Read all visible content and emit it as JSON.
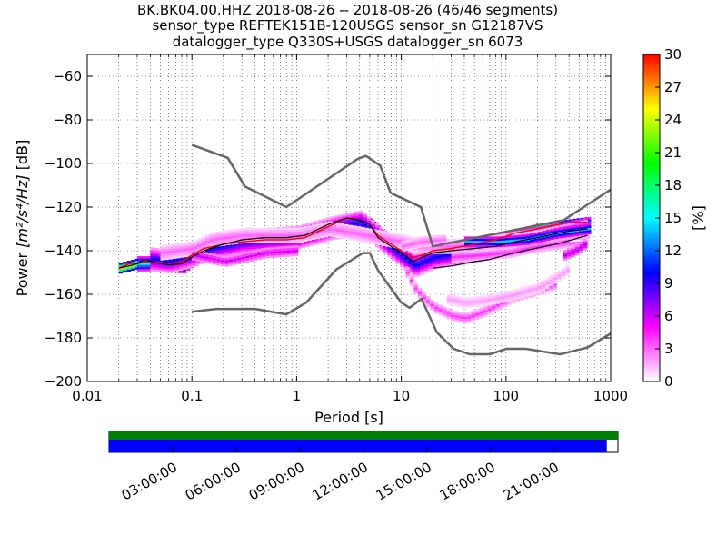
{
  "title_lines": [
    "BK.BK04.00.HHZ   2018-08-26 -- 2018-08-26  (46/46 segments)",
    "sensor_type REFTEK151B-120USGS sensor_sn G12187VS",
    "datalogger_type Q330S+USGS datalogger_sn 6073"
  ],
  "chart_data": {
    "type": "heatmap",
    "xlabel": "Period [s]",
    "ylabel_prefix": "Power ",
    "ylabel_math": "[m²/s⁴/Hz]",
    "ylabel_suffix": " [dB]",
    "x_scale": "log",
    "xlim": [
      0.01,
      1000
    ],
    "ylim": [
      -200,
      -50
    ],
    "x_ticks": [
      0.01,
      0.1,
      1,
      10,
      100,
      1000
    ],
    "x_tick_labels": [
      "0.01",
      "0.1",
      "1",
      "10",
      "100",
      "1000"
    ],
    "y_ticks": [
      -200,
      -180,
      -160,
      -140,
      -120,
      -100,
      -80,
      -60
    ],
    "y_tick_labels": [
      "−200",
      "−180",
      "−160",
      "−140",
      "−120",
      "−100",
      "−80",
      "−60"
    ],
    "colorbar": {
      "label": "[%]",
      "range": [
        0,
        30
      ],
      "ticks": [
        0,
        3,
        6,
        9,
        12,
        15,
        18,
        21,
        24,
        27,
        30
      ],
      "tick_labels": [
        "0",
        "3",
        "6",
        "9",
        "12",
        "15",
        "18",
        "21",
        "24",
        "27",
        "30"
      ],
      "colors": [
        "#ffffff",
        "#ff00ff",
        "#0000ff",
        "#00ffff",
        "#00ff00",
        "#ffff00",
        "#ff0000"
      ]
    },
    "nhnm": {
      "name": "NHNM",
      "color": "#666666",
      "points": [
        [
          0.1,
          -91.5
        ],
        [
          0.22,
          -97.4
        ],
        [
          0.32,
          -110.5
        ],
        [
          0.8,
          -120
        ],
        [
          3.8,
          -98
        ],
        [
          4.6,
          -96.5
        ],
        [
          6.3,
          -101
        ],
        [
          7.9,
          -113.5
        ],
        [
          15.4,
          -120
        ],
        [
          20,
          -138
        ],
        [
          354.8,
          -126
        ],
        [
          1000,
          -112
        ]
      ]
    },
    "nlnm": {
      "name": "NLNM",
      "color": "#666666",
      "points": [
        [
          0.1,
          -168
        ],
        [
          0.17,
          -166.7
        ],
        [
          0.4,
          -166.7
        ],
        [
          0.8,
          -169.2
        ],
        [
          1.24,
          -163.7
        ],
        [
          2.4,
          -148.6
        ],
        [
          4.3,
          -141.1
        ],
        [
          5,
          -141.1
        ],
        [
          6,
          -149
        ],
        [
          10,
          -163.8
        ],
        [
          12,
          -166.2
        ],
        [
          15.6,
          -162.1
        ],
        [
          21.9,
          -177.5
        ],
        [
          31.6,
          -185
        ],
        [
          45,
          -187.5
        ],
        [
          70,
          -187.5
        ],
        [
          101,
          -185
        ],
        [
          154,
          -185
        ],
        [
          328,
          -187.5
        ],
        [
          600,
          -184.4
        ],
        [
          1000,
          -178
        ]
      ]
    },
    "mean_line": {
      "color": "#000000",
      "points": [
        [
          0.02,
          -148
        ],
        [
          0.025,
          -147
        ],
        [
          0.03,
          -146
        ],
        [
          0.035,
          -144
        ],
        [
          0.045,
          -145.5
        ],
        [
          0.06,
          -146.5
        ],
        [
          0.08,
          -146
        ],
        [
          0.1,
          -143
        ],
        [
          0.13,
          -140
        ],
        [
          0.2,
          -137
        ],
        [
          0.3,
          -135
        ],
        [
          0.5,
          -134
        ],
        [
          0.8,
          -134
        ],
        [
          1.2,
          -133
        ],
        [
          2,
          -128
        ],
        [
          3,
          -125
        ],
        [
          4,
          -126
        ],
        [
          5,
          -128
        ],
        [
          6,
          -134
        ],
        [
          8,
          -138
        ],
        [
          10,
          -141
        ],
        [
          13,
          -145
        ],
        [
          16,
          -143
        ],
        [
          20,
          -141
        ],
        [
          30,
          -140
        ],
        [
          50,
          -139
        ],
        [
          80,
          -138
        ],
        [
          120,
          -136
        ],
        [
          200,
          -134
        ],
        [
          400,
          -131
        ],
        [
          600,
          -130
        ]
      ]
    },
    "mode_line": {
      "color": "#ff0000",
      "points": [
        [
          0.02,
          -148
        ],
        [
          0.025,
          -146
        ],
        [
          0.03,
          -146
        ],
        [
          0.035,
          -145
        ],
        [
          0.045,
          -145
        ],
        [
          0.06,
          -146
        ],
        [
          0.08,
          -145
        ],
        [
          0.1,
          -142
        ],
        [
          0.13,
          -139
        ],
        [
          0.2,
          -137
        ],
        [
          0.3,
          -136
        ],
        [
          0.5,
          -135
        ],
        [
          0.8,
          -135
        ],
        [
          1.2,
          -134
        ],
        [
          2,
          -129
        ],
        [
          3,
          -125
        ],
        [
          4,
          -126
        ],
        [
          5,
          -128
        ],
        [
          6,
          -133
        ],
        [
          8,
          -137
        ],
        [
          10,
          -140
        ],
        [
          13,
          -143
        ],
        [
          16,
          -142
        ],
        [
          20,
          -140
        ],
        [
          30,
          -139
        ],
        [
          50,
          -137
        ],
        [
          80,
          -135
        ],
        [
          120,
          -132
        ],
        [
          200,
          -130
        ],
        [
          400,
          -127
        ],
        [
          600,
          -127
        ]
      ]
    },
    "low_line": {
      "color": "#000000",
      "points": [
        [
          20,
          -148
        ],
        [
          30,
          -147
        ],
        [
          50,
          -145
        ],
        [
          70,
          -144
        ],
        [
          100,
          -142
        ],
        [
          150,
          -140
        ],
        [
          300,
          -137
        ],
        [
          600,
          -133
        ]
      ]
    },
    "pdf_bands": [
      {
        "points": [
          [
            0.02,
            -148
          ],
          [
            0.03,
            -146
          ],
          [
            0.05,
            -145
          ],
          [
            0.08,
            -146
          ],
          [
            0.1,
            -143
          ],
          [
            0.2,
            -137
          ],
          [
            0.5,
            -134
          ],
          [
            1,
            -134
          ],
          [
            2,
            -129
          ],
          [
            3,
            -125
          ],
          [
            4,
            -126
          ],
          [
            5,
            -128
          ],
          [
            7,
            -135
          ],
          [
            10,
            -141
          ],
          [
            13,
            -145
          ],
          [
            20,
            -141
          ],
          [
            50,
            -138
          ],
          [
            100,
            -134
          ],
          [
            200,
            -130
          ],
          [
            600,
            -127
          ]
        ],
        "halfwidth": 2,
        "pct": 26
      },
      {
        "points": [
          [
            0.03,
            -146
          ],
          [
            0.05,
            -146
          ],
          [
            0.08,
            -147
          ],
          [
            0.1,
            -144
          ],
          [
            0.2,
            -138
          ],
          [
            0.5,
            -135
          ],
          [
            1,
            -135
          ],
          [
            2,
            -130
          ],
          [
            3,
            -126
          ],
          [
            5,
            -129
          ],
          [
            7,
            -137
          ],
          [
            10,
            -142
          ],
          [
            13,
            -146
          ],
          [
            20,
            -142
          ],
          [
            50,
            -139
          ],
          [
            100,
            -135
          ],
          [
            300,
            -131
          ],
          [
            600,
            -128
          ]
        ],
        "halfwidth": 3,
        "pct": 16
      },
      {
        "points": [
          [
            0.04,
            -144
          ],
          [
            0.06,
            -145
          ],
          [
            0.1,
            -142
          ],
          [
            0.15,
            -139
          ],
          [
            0.3,
            -136
          ],
          [
            1,
            -134
          ],
          [
            2,
            -130
          ],
          [
            4,
            -127
          ],
          [
            8,
            -139
          ],
          [
            13,
            -147
          ],
          [
            20,
            -143
          ],
          [
            50,
            -140
          ],
          [
            100,
            -137
          ],
          [
            300,
            -134
          ],
          [
            600,
            -131
          ]
        ],
        "halfwidth": 5,
        "pct": 10
      },
      {
        "points": [
          [
            0.05,
            -141
          ],
          [
            0.1,
            -139
          ],
          [
            0.15,
            -135
          ],
          [
            0.3,
            -133
          ],
          [
            1,
            -133
          ],
          [
            2,
            -130
          ],
          [
            10,
            -136
          ],
          [
            15,
            -138
          ],
          [
            30,
            -138
          ],
          [
            100,
            -136
          ],
          [
            300,
            -133
          ],
          [
            600,
            -132
          ]
        ],
        "halfwidth": 3,
        "pct": 3
      },
      {
        "points": [
          [
            0.1,
            -142
          ],
          [
            0.2,
            -145
          ],
          [
            0.5,
            -141
          ],
          [
            1,
            -140
          ]
        ],
        "halfwidth": 2,
        "pct": 6
      },
      {
        "points": [
          [
            11,
            -150
          ],
          [
            13,
            -157
          ],
          [
            16,
            -162
          ],
          [
            20,
            -166
          ],
          [
            30,
            -170
          ],
          [
            40,
            -171
          ],
          [
            60,
            -168
          ],
          [
            80,
            -165
          ],
          [
            120,
            -161
          ],
          [
            200,
            -158
          ],
          [
            300,
            -155
          ]
        ],
        "halfwidth": 2,
        "pct": 4
      },
      {
        "points": [
          [
            25,
            -162
          ],
          [
            40,
            -164
          ],
          [
            60,
            -163
          ],
          [
            100,
            -161
          ],
          [
            200,
            -157
          ],
          [
            300,
            -152
          ],
          [
            400,
            -148
          ]
        ],
        "halfwidth": 2,
        "pct": 2
      },
      {
        "points": [
          [
            30,
            -143
          ],
          [
            60,
            -142
          ],
          [
            100,
            -141
          ],
          [
            200,
            -138
          ],
          [
            400,
            -136
          ]
        ],
        "halfwidth": 2,
        "pct": 4
      },
      {
        "points": [
          [
            40,
            -136
          ],
          [
            80,
            -136
          ],
          [
            150,
            -135
          ],
          [
            300,
            -132
          ],
          [
            600,
            -130
          ]
        ],
        "halfwidth": 2,
        "pct": 14
      },
      {
        "points": [
          [
            10,
            -138
          ],
          [
            15,
            -136
          ],
          [
            25,
            -135
          ]
        ],
        "halfwidth": 2,
        "pct": 3
      },
      {
        "points": [
          [
            350,
            -142
          ],
          [
            450,
            -140
          ],
          [
            600,
            -136
          ]
        ],
        "halfwidth": 2,
        "pct": 7
      }
    ]
  },
  "timeline": {
    "ticks": [
      "03:00:00",
      "06:00:00",
      "09:00:00",
      "12:00:00",
      "15:00:00",
      "18:00:00",
      "21:00:00"
    ],
    "tick_hours": [
      3,
      6,
      9,
      12,
      15,
      18,
      21
    ],
    "total_hours": 24,
    "data_fraction": 0.978,
    "top_bar_color": "#008000",
    "bottom_bar_color": "#0000ff"
  }
}
